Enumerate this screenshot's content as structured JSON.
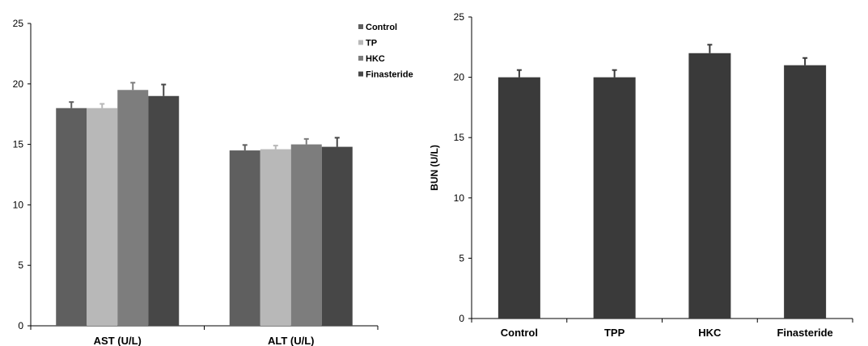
{
  "chart_data": [
    {
      "type": "bar",
      "categories": [
        "AST (U/L)",
        "ALT (U/L)"
      ],
      "series": [
        {
          "name": "Control",
          "color": "#5f5f5f",
          "values": [
            18.0,
            14.5
          ],
          "errors": [
            0.5,
            0.45
          ]
        },
        {
          "name": "TP",
          "color": "#b8b8b8",
          "values": [
            18.0,
            14.6
          ],
          "errors": [
            0.35,
            0.3
          ]
        },
        {
          "name": "HKC",
          "color": "#7d7d7d",
          "values": [
            19.5,
            15.0
          ],
          "errors": [
            0.6,
            0.45
          ]
        },
        {
          "name": "Finasteride",
          "color": "#474747",
          "values": [
            19.0,
            14.8
          ],
          "errors": [
            0.95,
            0.75
          ]
        }
      ],
      "yticks": [
        "0",
        "5",
        "10",
        "15",
        "20",
        "25"
      ],
      "ylim": [
        0,
        25
      ],
      "xlabel": "",
      "ylabel": "",
      "legend": "top-right"
    },
    {
      "type": "bar",
      "categories": [
        "Control",
        "TPP",
        "HKC",
        "Finasteride"
      ],
      "series": [
        {
          "color": "#3a3a3a",
          "values": [
            20.0,
            20.0,
            22.0,
            21.0
          ],
          "errors": [
            0.6,
            0.6,
            0.7,
            0.6
          ]
        }
      ],
      "yticks": [
        "0",
        "5",
        "10",
        "15",
        "20",
        "25"
      ],
      "ylim": [
        0,
        25
      ],
      "xlabel": "",
      "ylabel": "BUN (U/L)"
    }
  ]
}
